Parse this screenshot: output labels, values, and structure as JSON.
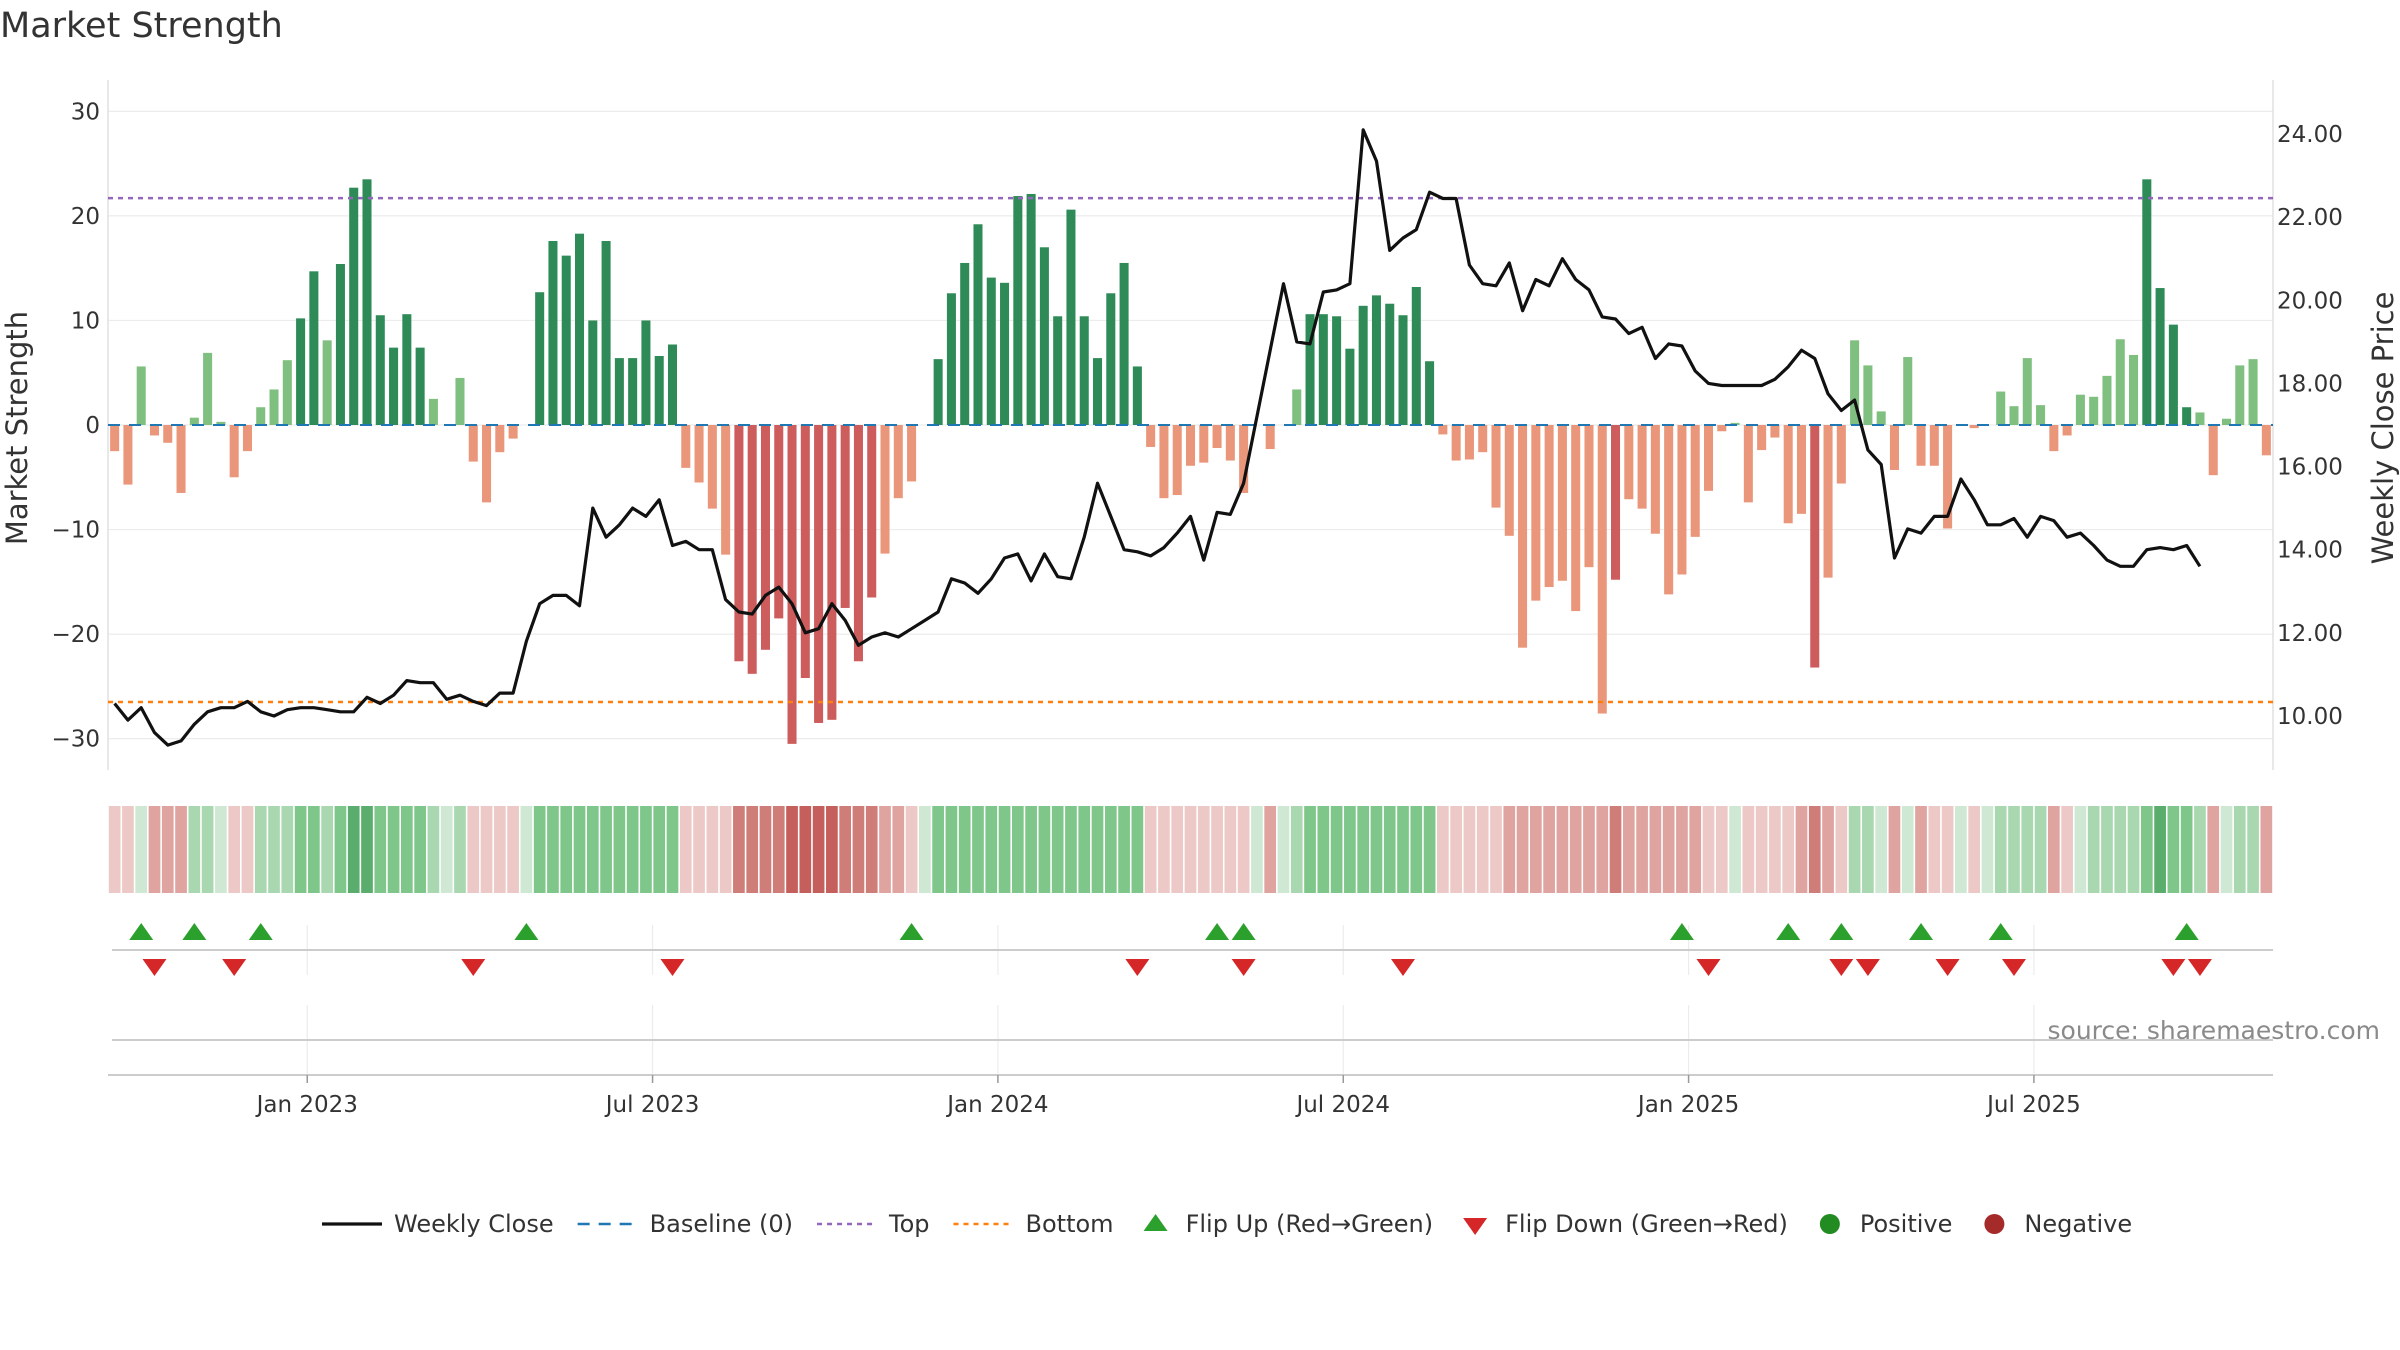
{
  "title": "Market Strength",
  "source": "source: sharemaestro.com",
  "colors": {
    "strong_green": "#2e8b57",
    "light_green": "#7fbf7f",
    "strong_red": "#cd5c5c",
    "light_red": "#e9967a",
    "line": "#111111",
    "baseline": "#1f77b4",
    "top": "#9467bd",
    "bottom": "#ff7f0e",
    "flip_up": "#2ca02c",
    "flip_down": "#d62728",
    "positive": "#228b22",
    "negative": "#a52a2a"
  },
  "chart_data": {
    "type": "bar",
    "ylabel": "Market Strength",
    "y2label": "Weekly Close Price",
    "ylim": [
      -33,
      33
    ],
    "y2lim": [
      8.7,
      25.3
    ],
    "yticks": [
      "30",
      "20",
      "10",
      "0",
      "−10",
      "−20",
      "−30"
    ],
    "yticks_values": [
      30,
      20,
      10,
      0,
      -10,
      -20,
      -30
    ],
    "y2ticks": [
      "24.00",
      "22.00",
      "20.00",
      "18.00",
      "16.00",
      "14.00",
      "12.00",
      "10.00"
    ],
    "y2ticks_values": [
      24,
      22,
      20,
      18,
      16,
      14,
      12,
      10
    ],
    "xticks": [
      "Jan 2023",
      "Jul 2023",
      "Jan 2024",
      "Jul 2024",
      "Jan 2025",
      "Jul 2025"
    ],
    "xticks_week": [
      15,
      41,
      67,
      93,
      119,
      145
    ],
    "top_level": 21.7,
    "bottom_level": -26.5,
    "baseline": 0,
    "strength": [
      -2.5,
      -5.7,
      5.6,
      -1.0,
      -1.7,
      -6.5,
      0.7,
      6.9,
      0.3,
      -5.0,
      -2.5,
      1.7,
      3.4,
      6.2,
      10.2,
      14.7,
      8.1,
      15.4,
      22.7,
      23.5,
      10.5,
      7.4,
      10.6,
      7.4,
      2.5,
      0,
      4.5,
      -3.5,
      -7.4,
      -2.6,
      -1.3,
      0,
      12.7,
      17.6,
      16.2,
      18.3,
      10.0,
      17.6,
      6.4,
      6.4,
      10.0,
      6.6,
      7.7,
      -4.1,
      -5.5,
      -8.0,
      -12.4,
      -22.6,
      -23.8,
      -21.5,
      -18.5,
      -30.5,
      -24.2,
      -28.5,
      -28.2,
      -17.5,
      -22.6,
      -16.5,
      -12.3,
      -7.0,
      -5.4,
      0,
      6.3,
      12.6,
      15.5,
      19.2,
      14.1,
      13.6,
      21.9,
      22.1,
      17.0,
      10.4,
      20.6,
      10.4,
      6.4,
      12.6,
      15.5,
      5.6,
      -2.1,
      -7.0,
      -6.7,
      -3.9,
      -3.6,
      -2.2,
      -3.4,
      -6.5,
      0,
      -2.3,
      0,
      3.4,
      10.6,
      10.6,
      10.4,
      7.3,
      11.4,
      12.4,
      11.6,
      10.5,
      13.2,
      6.1,
      -0.9,
      -3.4,
      -3.3,
      -2.6,
      -7.9,
      -10.6,
      -21.3,
      -16.8,
      -15.5,
      -14.9,
      -17.8,
      -13.6,
      -27.6,
      -14.8,
      -7.1,
      -8.0,
      -10.4,
      -16.2,
      -14.3,
      -10.7,
      -6.3,
      -0.6,
      0.2,
      -7.4,
      -2.4,
      -1.2,
      -9.4,
      -8.5,
      -23.2,
      -14.6,
      -5.6,
      8.1,
      5.7,
      1.3,
      -4.3,
      6.5,
      -3.9,
      -3.9,
      -9.9,
      0,
      -0.3,
      0,
      3.2,
      1.8,
      6.4,
      1.9,
      -2.5,
      -1.0,
      2.9,
      2.7,
      4.7,
      8.2,
      6.7,
      23.5,
      13.1,
      9.6,
      1.7,
      1.2,
      -4.8,
      0.6,
      5.7,
      6.3,
      -2.9
    ],
    "close": [
      10.3,
      9.9,
      10.2,
      9.6,
      9.3,
      9.4,
      9.8,
      10.1,
      10.2,
      10.2,
      10.35,
      10.1,
      10.0,
      10.15,
      10.2,
      10.2,
      10.15,
      10.1,
      10.1,
      10.45,
      10.3,
      10.5,
      10.85,
      10.8,
      10.8,
      10.4,
      10.5,
      10.35,
      10.25,
      10.55,
      10.55,
      11.8,
      12.7,
      12.9,
      12.9,
      12.65,
      15.0,
      14.3,
      14.6,
      15.0,
      14.8,
      15.2,
      14.1,
      14.2,
      14.0,
      14.0,
      12.8,
      12.5,
      12.45,
      12.9,
      13.1,
      12.7,
      12.0,
      12.1,
      12.7,
      12.3,
      11.7,
      11.9,
      12.0,
      11.9,
      12.1,
      12.3,
      12.5,
      13.3,
      13.2,
      12.95,
      13.3,
      13.8,
      13.9,
      13.25,
      13.9,
      13.35,
      13.3,
      14.3,
      15.6,
      14.8,
      14.0,
      13.95,
      13.85,
      14.05,
      14.4,
      14.8,
      13.75,
      14.9,
      14.85,
      15.6,
      17.2,
      18.8,
      20.4,
      19.0,
      18.95,
      20.2,
      20.25,
      20.4,
      24.1,
      23.35,
      21.2,
      21.5,
      21.7,
      22.6,
      22.45,
      22.45,
      20.85,
      20.4,
      20.35,
      20.9,
      19.75,
      20.5,
      20.35,
      21.0,
      20.5,
      20.25,
      19.6,
      19.55,
      19.2,
      19.35,
      18.6,
      18.95,
      18.9,
      18.3,
      18.0,
      17.95,
      17.95,
      17.95,
      17.95,
      18.1,
      18.4,
      18.8,
      18.6,
      17.75,
      17.35,
      17.6,
      16.4,
      16.05,
      13.8,
      14.5,
      14.4,
      14.8,
      14.8,
      15.7,
      15.2,
      14.6,
      14.6,
      14.75,
      14.3,
      14.8,
      14.7,
      14.3,
      14.4,
      14.1,
      13.75,
      13.6,
      13.6,
      14.0,
      14.05,
      14.0,
      14.1,
      13.6
    ],
    "intensity": [
      1,
      1,
      1,
      2,
      2,
      2,
      2,
      2,
      1,
      1,
      1,
      2,
      2,
      2,
      3,
      3,
      2,
      3,
      4,
      4,
      3,
      3,
      3,
      3,
      2,
      1,
      2,
      1,
      1,
      1,
      1,
      1,
      3,
      3,
      3,
      3,
      3,
      3,
      3,
      3,
      3,
      3,
      3,
      1,
      1,
      1,
      1,
      3,
      3,
      3,
      3,
      4,
      4,
      4,
      4,
      3,
      3,
      3,
      2,
      2,
      1,
      1,
      3,
      3,
      3,
      3,
      3,
      3,
      3,
      3,
      3,
      3,
      3,
      3,
      3,
      3,
      3,
      3,
      1,
      1,
      1,
      1,
      1,
      1,
      1,
      1,
      1,
      2,
      1,
      2,
      3,
      3,
      3,
      3,
      3,
      3,
      3,
      3,
      3,
      3,
      1,
      1,
      1,
      1,
      1,
      2,
      2,
      2,
      2,
      2,
      2,
      2,
      2,
      3,
      2,
      2,
      2,
      2,
      2,
      2,
      1,
      1,
      1,
      1,
      1,
      1,
      1,
      2,
      3,
      2,
      1,
      2,
      2,
      1,
      2,
      1,
      2,
      1,
      1,
      1,
      1,
      1,
      2,
      2,
      2,
      2,
      2,
      1,
      1,
      2,
      2,
      2,
      2,
      3,
      4,
      3,
      3,
      2,
      2,
      1,
      2,
      2,
      2,
      1
    ],
    "flips_up": [
      2,
      6,
      11,
      31,
      60,
      83,
      85,
      118,
      126,
      130,
      136,
      142,
      156
    ],
    "flips_down": [
      3,
      9,
      27,
      42,
      77,
      85,
      97,
      120,
      130,
      132,
      138,
      143,
      155,
      157
    ]
  },
  "legend": [
    {
      "label": "Weekly Close",
      "kind": "line"
    },
    {
      "label": "Baseline (0)",
      "kind": "dash"
    },
    {
      "label": "Top",
      "kind": "dot-top"
    },
    {
      "label": "Bottom",
      "kind": "dot-bottom"
    },
    {
      "label": "Flip Up (Red→Green)",
      "kind": "tri-up"
    },
    {
      "label": "Flip Down (Green→Red)",
      "kind": "tri-down"
    },
    {
      "label": "Positive",
      "kind": "dot-pos"
    },
    {
      "label": "Negative",
      "kind": "dot-neg"
    }
  ]
}
